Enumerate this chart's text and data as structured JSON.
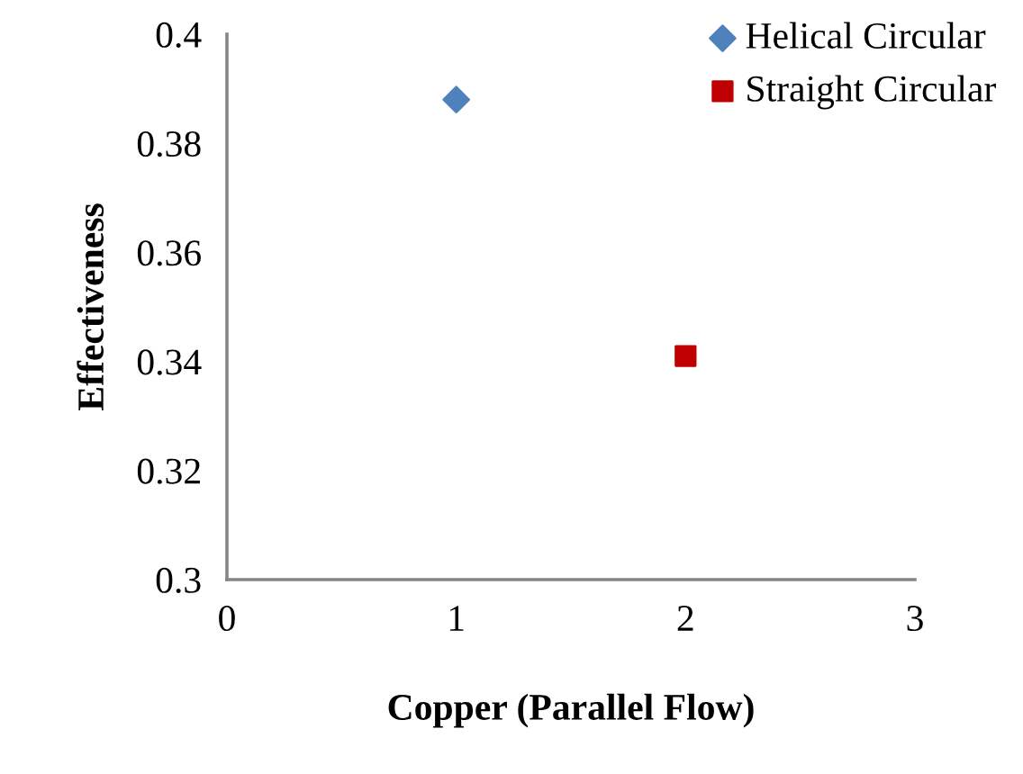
{
  "chart_data": {
    "type": "scatter",
    "xlabel": "Copper (Parallel Flow)",
    "ylabel": "Effectiveness",
    "series": [
      {
        "name": "Helical Circular",
        "color": "#4f81bd",
        "x": [
          1
        ],
        "values": [
          0.388
        ],
        "marker": "diamond"
      },
      {
        "name": "Straight Circular",
        "color": "#c00000",
        "x": [
          2
        ],
        "values": [
          0.341
        ],
        "marker": "square"
      }
    ],
    "xlim": [
      0,
      3
    ],
    "xticks": [
      0,
      1,
      2,
      3
    ],
    "ylim": [
      0.3,
      0.4
    ],
    "yticks": [
      0.3,
      0.32,
      0.34,
      0.36,
      0.38,
      0.4
    ],
    "grid": false,
    "legend": "top right"
  }
}
